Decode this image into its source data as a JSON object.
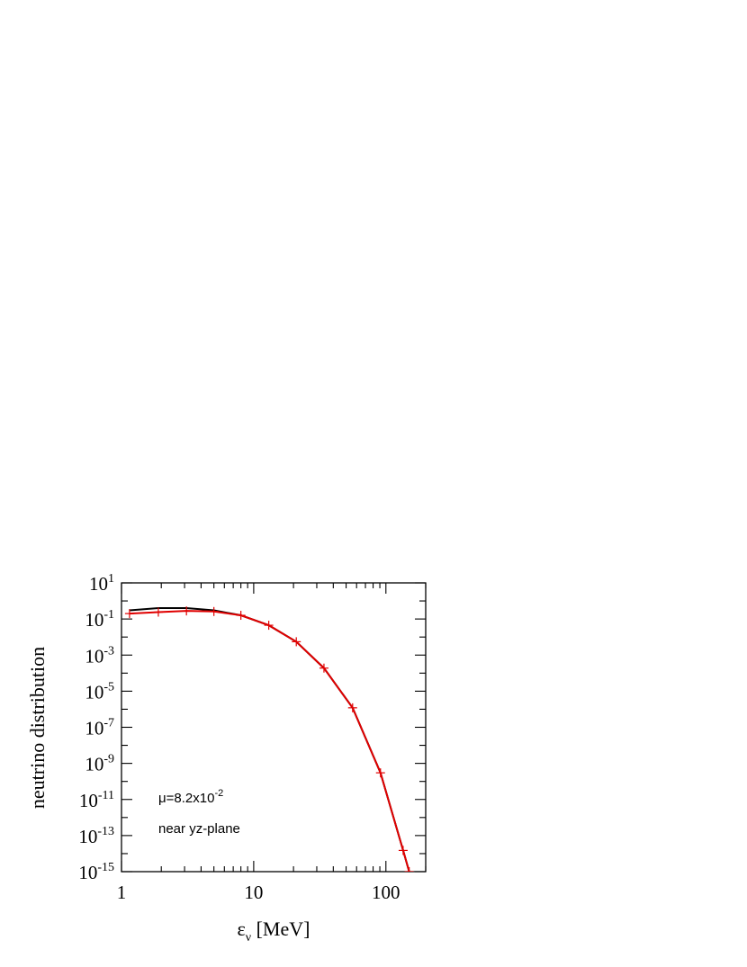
{
  "chart_data": {
    "type": "line",
    "xlabel": {
      "main": "ε",
      "sub": "ν",
      "rest": " [MeV]"
    },
    "ylabel": "neutrino distribution",
    "x_scale": "log",
    "y_scale": "log",
    "xlim": [
      1,
      200
    ],
    "ylim": [
      1e-15,
      10
    ],
    "x_ticks": [
      {
        "value": 1,
        "label": "1"
      },
      {
        "value": 10,
        "label": "10"
      },
      {
        "value": 100,
        "label": "100"
      }
    ],
    "y_ticks": [
      {
        "value": 10.0,
        "base": "10",
        "exp": "1"
      },
      {
        "value": 0.1,
        "base": "10",
        "exp": "-1"
      },
      {
        "value": 0.001,
        "base": "10",
        "exp": "-3"
      },
      {
        "value": 1e-05,
        "base": "10",
        "exp": "-5"
      },
      {
        "value": 1e-07,
        "base": "10",
        "exp": "-7"
      },
      {
        "value": 1e-09,
        "base": "10",
        "exp": "-9"
      },
      {
        "value": 1e-11,
        "base": "10",
        "exp": "-11"
      },
      {
        "value": 1e-13,
        "base": "10",
        "exp": "-13"
      },
      {
        "value": 1e-15,
        "base": "10",
        "exp": "-15"
      }
    ],
    "annotations": {
      "line1_main": "μ=8.2x10",
      "line1_exp": "-2",
      "line2": "near yz-plane"
    },
    "series": [
      {
        "color": "#000000",
        "markers": false,
        "points": [
          [
            1.15,
            0.3
          ],
          [
            1.9,
            0.4
          ],
          [
            3.1,
            0.4
          ],
          [
            5.0,
            0.3
          ],
          [
            8.0,
            0.16
          ],
          [
            13.0,
            0.045
          ],
          [
            21.0,
            0.0055
          ],
          [
            34.0,
            0.00019
          ],
          [
            56.0,
            1.2e-06
          ],
          [
            91.0,
            3e-10
          ],
          [
            135.0,
            1.5e-14
          ],
          [
            150.0,
            1e-15
          ]
        ]
      },
      {
        "color": "#e00000",
        "markers": true,
        "points": [
          [
            1.15,
            0.2
          ],
          [
            1.9,
            0.24
          ],
          [
            3.1,
            0.28
          ],
          [
            5.0,
            0.26
          ],
          [
            8.0,
            0.16
          ],
          [
            13.0,
            0.045
          ],
          [
            21.0,
            0.0055
          ],
          [
            34.0,
            0.00019
          ],
          [
            56.0,
            1.2e-06
          ],
          [
            91.0,
            3e-10
          ],
          [
            135.0,
            1.5e-14
          ],
          [
            150.0,
            1e-15
          ]
        ]
      }
    ],
    "grid": false,
    "legend": "none"
  }
}
